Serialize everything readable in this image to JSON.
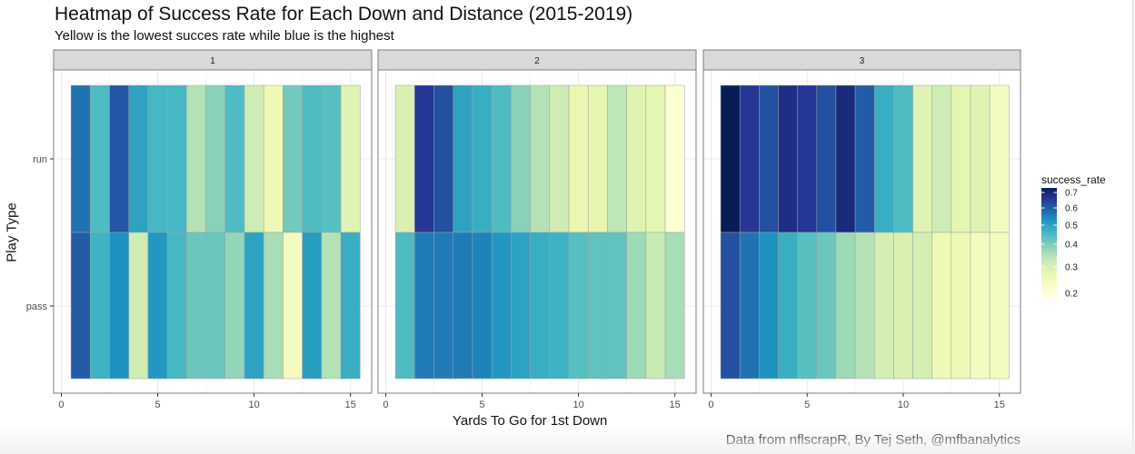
{
  "chart_data": {
    "type": "heatmap",
    "title": "Heatmap of Success Rate for Each Down and Distance (2015-2019)",
    "subtitle": "Yellow is the lowest succes rate while blue is the highest",
    "caption": "Data from nflscrapR, By Tej Seth, @mfbanalytics",
    "xlabel": "Yards To Go for 1st Down",
    "ylabel": "Play Type",
    "facet_variable": "down",
    "facets": [
      "1",
      "2",
      "3"
    ],
    "x": [
      1,
      2,
      3,
      4,
      5,
      6,
      7,
      8,
      9,
      10,
      11,
      12,
      13,
      14,
      15
    ],
    "x_ticks": [
      0,
      5,
      10,
      15
    ],
    "x_tick_labels": [
      "0",
      "5",
      "10",
      "15"
    ],
    "xlim": [
      0,
      15.5
    ],
    "y_categories": [
      "pass",
      "run"
    ],
    "grid": true,
    "legend": {
      "title": "success_rate",
      "position": "right",
      "breaks": [
        0.7,
        0.6,
        0.5,
        0.4,
        0.3,
        0.2
      ],
      "break_labels": [
        "0.7",
        "0.6",
        "0.5",
        "0.4",
        "0.3",
        "0.2"
      ],
      "range": [
        0.2,
        0.73
      ],
      "palette_low": "#ffffd9",
      "palette_high": "#081d58"
    },
    "panels": [
      {
        "down": "1",
        "series": [
          {
            "name": "run",
            "values": [
              0.57,
              0.45,
              0.61,
              0.5,
              0.46,
              0.46,
              0.35,
              0.39,
              0.45,
              0.32,
              0.26,
              0.41,
              0.45,
              0.44,
              0.29
            ]
          },
          {
            "name": "pass",
            "values": [
              0.6,
              0.47,
              0.53,
              0.32,
              0.52,
              0.46,
              0.42,
              0.42,
              0.38,
              0.5,
              0.36,
              0.24,
              0.51,
              0.35,
              0.48
            ]
          }
        ]
      },
      {
        "down": "2",
        "series": [
          {
            "name": "run",
            "values": [
              0.3,
              0.66,
              0.62,
              0.5,
              0.48,
              0.45,
              0.39,
              0.35,
              0.32,
              0.27,
              0.28,
              0.34,
              0.29,
              0.28,
              0.21
            ]
          },
          {
            "name": "pass",
            "values": [
              0.45,
              0.56,
              0.56,
              0.56,
              0.55,
              0.52,
              0.5,
              0.48,
              0.47,
              0.44,
              0.43,
              0.43,
              0.37,
              0.33,
              0.36
            ]
          }
        ]
      },
      {
        "down": "3",
        "series": [
          {
            "name": "run",
            "values": [
              0.73,
              0.66,
              0.62,
              0.68,
              0.66,
              0.62,
              0.69,
              0.6,
              0.48,
              0.45,
              0.29,
              0.32,
              0.28,
              0.29,
              0.24
            ]
          },
          {
            "name": "pass",
            "values": [
              0.62,
              0.57,
              0.53,
              0.48,
              0.44,
              0.42,
              0.37,
              0.35,
              0.31,
              0.3,
              0.31,
              0.26,
              0.26,
              0.24,
              0.24
            ]
          }
        ]
      }
    ]
  }
}
